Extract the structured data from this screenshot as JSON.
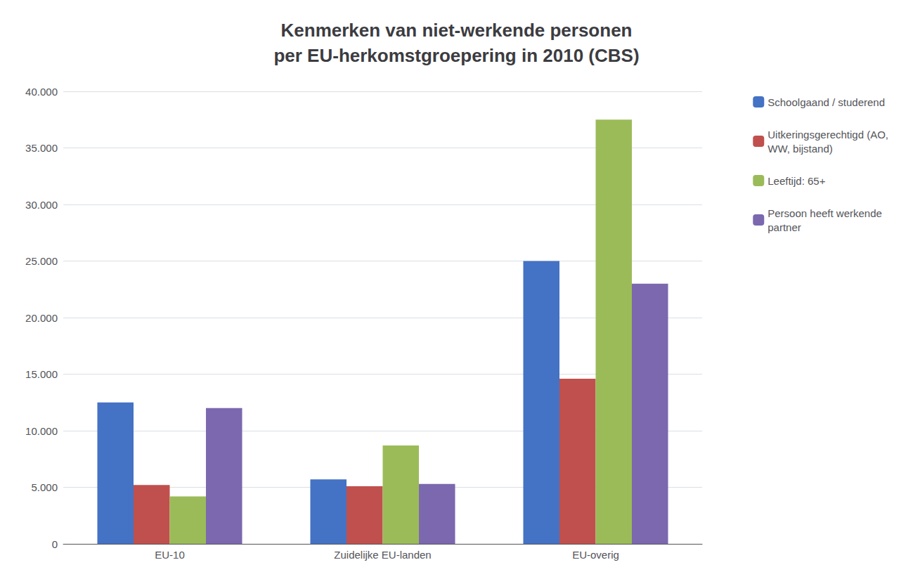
{
  "chart_data": {
    "type": "bar",
    "title": "Kenmerken van niet-werkende personen\nper EU-herkomstgroepering in 2010 (CBS)",
    "categories": [
      "EU-10",
      "Zuidelijke EU-landen",
      "EU-overig"
    ],
    "series": [
      {
        "name": "Schoolgaand / studerend",
        "color": "#4472C4",
        "values": [
          12500,
          5700,
          25000
        ]
      },
      {
        "name": "Uitkeringsgerechtigd (AO,\nWW, bijstand)",
        "color": "#C0504D",
        "values": [
          5200,
          5100,
          14600
        ]
      },
      {
        "name": "Leeftijd: 65+",
        "color": "#9BBB59",
        "values": [
          4200,
          8700,
          37500
        ]
      },
      {
        "name": "Persoon heeft werkende\npartner",
        "color": "#7B68AE",
        "values": [
          12000,
          5300,
          23000
        ]
      }
    ],
    "ylim": [
      0,
      40000
    ],
    "yticks": [
      0,
      {
        "value": 5000,
        "label": "5.000"
      },
      {
        "value": 10000,
        "label": "10.000"
      },
      {
        "value": 15000,
        "label": "15.000"
      },
      {
        "value": 20000,
        "label": "20.000"
      },
      {
        "value": 25000,
        "label": "25.000"
      },
      {
        "value": 30000,
        "label": "30.000"
      },
      {
        "value": 35000,
        "label": "35.000"
      },
      {
        "value": 40000,
        "label": "40.000"
      }
    ],
    "grid": true,
    "legend": "right"
  }
}
